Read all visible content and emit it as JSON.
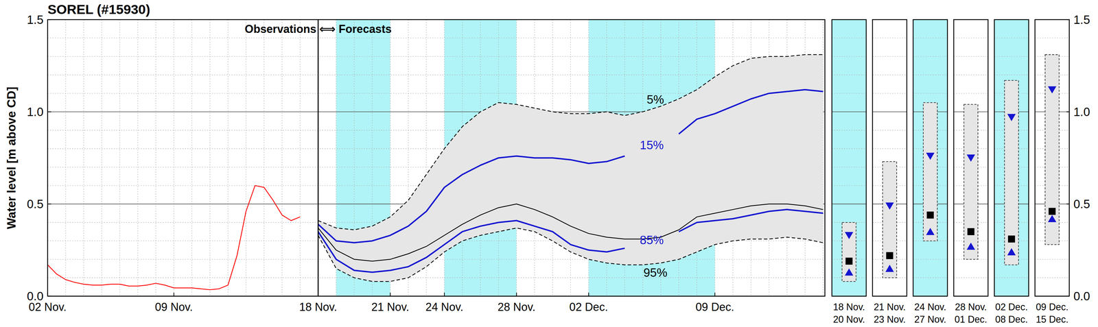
{
  "chart_data": {
    "type": "line",
    "title": "SOREL (#15930)",
    "y_label": "Water level [m above CD]",
    "annotation": "Observations ⟺ Forecasts",
    "forecast_start": 15,
    "xlim": [
      0,
      43.1
    ],
    "xticks": [
      {
        "value": 0,
        "label": "02 Nov."
      },
      {
        "value": 7,
        "label": "09 Nov."
      },
      {
        "value": 15,
        "label": "18 Nov."
      },
      {
        "value": 19,
        "label": "21 Nov."
      },
      {
        "value": 22,
        "label": "24 Nov."
      },
      {
        "value": 26,
        "label": "28 Nov."
      },
      {
        "value": 30,
        "label": "02 Dec."
      },
      {
        "value": 37,
        "label": "09 Dec."
      }
    ],
    "ylim": [
      0,
      1.5
    ],
    "yticks": [
      {
        "value": 0,
        "label": "0.0"
      },
      {
        "value": 0.5,
        "label": "0.5"
      },
      {
        "value": 1,
        "label": "1.0"
      },
      {
        "value": 1.5,
        "label": "1.5"
      }
    ],
    "grid": true,
    "series": [
      {
        "color": "#ff0000",
        "line_style": "solid",
        "x": [
          0,
          0.5,
          1,
          1.5,
          2,
          2.5,
          3,
          3.5,
          4,
          4.5,
          5,
          5.5,
          6,
          6.5,
          7,
          7.5,
          8,
          8.5,
          9,
          9.5,
          10,
          10.5,
          11,
          11.5,
          12,
          12.5,
          13,
          13.5,
          14
        ],
        "values": [
          0.17,
          0.12,
          0.09,
          0.075,
          0.065,
          0.06,
          0.06,
          0.065,
          0.065,
          0.055,
          0.055,
          0.06,
          0.07,
          0.06,
          0.045,
          0.045,
          0.045,
          0.04,
          0.035,
          0.04,
          0.06,
          0.22,
          0.46,
          0.6,
          0.59,
          0.52,
          0.44,
          0.41,
          0.43
        ]
      },
      {
        "name": "5%",
        "color": "#000000",
        "line_style": "dashed",
        "x": [
          15,
          16,
          17,
          18,
          19,
          20,
          21,
          22,
          23,
          24,
          25,
          26,
          27,
          28,
          29,
          30,
          31,
          32,
          33,
          34,
          35,
          36,
          37,
          38,
          39,
          40,
          41,
          42,
          43
        ],
        "values": [
          0.41,
          0.37,
          0.36,
          0.38,
          0.43,
          0.52,
          0.66,
          0.8,
          0.92,
          1.0,
          1.05,
          1.04,
          1.02,
          1.0,
          0.99,
          0.99,
          1.0,
          0.98,
          1.0,
          1.03,
          1.07,
          1.12,
          1.19,
          1.25,
          1.29,
          1.3,
          1.3,
          1.31,
          1.31
        ]
      },
      {
        "name": "15%",
        "color": "#1515d0",
        "line_style": "solid",
        "x": [
          15,
          16,
          17,
          18,
          19,
          20,
          21,
          22,
          23,
          24,
          25,
          26,
          27,
          28,
          29,
          30,
          31,
          32,
          33,
          34,
          35,
          36,
          37,
          38,
          39,
          40,
          41,
          42,
          43
        ],
        "values": [
          0.39,
          0.3,
          0.29,
          0.3,
          0.33,
          0.38,
          0.46,
          0.59,
          0.66,
          0.71,
          0.75,
          0.76,
          0.75,
          0.75,
          0.74,
          0.72,
          0.73,
          0.76,
          null,
          null,
          0.88,
          0.96,
          0.99,
          1.03,
          1.07,
          1.1,
          1.11,
          1.12,
          1.11
        ]
      },
      {
        "color": "#000000",
        "line_style": "solid",
        "x": [
          15,
          16,
          17,
          18,
          19,
          20,
          21,
          22,
          23,
          24,
          25,
          26,
          27,
          28,
          29,
          30,
          31,
          32,
          33,
          34,
          35,
          36,
          37,
          38,
          39,
          40,
          41,
          42,
          43
        ],
        "values": [
          0.37,
          0.25,
          0.2,
          0.19,
          0.2,
          0.23,
          0.27,
          0.33,
          0.39,
          0.44,
          0.48,
          0.5,
          0.47,
          0.43,
          0.38,
          0.34,
          0.32,
          0.31,
          0.31,
          0.32,
          0.36,
          0.43,
          0.45,
          0.47,
          0.49,
          0.5,
          0.5,
          0.49,
          0.47
        ]
      },
      {
        "name": "85%",
        "color": "#1515d0",
        "line_style": "solid",
        "x": [
          15,
          16,
          17,
          18,
          19,
          20,
          21,
          22,
          23,
          24,
          25,
          26,
          27,
          28,
          29,
          30,
          31,
          32,
          33,
          34,
          35,
          36,
          37,
          38,
          39,
          40,
          41,
          42,
          43
        ],
        "values": [
          0.35,
          0.2,
          0.14,
          0.13,
          0.14,
          0.16,
          0.21,
          0.28,
          0.35,
          0.38,
          0.4,
          0.41,
          0.38,
          0.35,
          0.28,
          0.25,
          0.24,
          0.26,
          null,
          null,
          0.35,
          0.4,
          0.41,
          0.42,
          0.44,
          0.46,
          0.47,
          0.46,
          0.45
        ]
      },
      {
        "name": "95%",
        "color": "#000000",
        "line_style": "dashed",
        "x": [
          15,
          16,
          17,
          18,
          19,
          20,
          21,
          22,
          23,
          24,
          25,
          26,
          27,
          28,
          29,
          30,
          31,
          32,
          33,
          34,
          35,
          36,
          37,
          38,
          39,
          40,
          41,
          42,
          43
        ],
        "values": [
          0.33,
          0.15,
          0.1,
          0.08,
          0.08,
          0.1,
          0.16,
          0.24,
          0.3,
          0.33,
          0.35,
          0.37,
          0.35,
          0.3,
          0.24,
          0.2,
          0.18,
          0.17,
          0.17,
          0.18,
          0.2,
          0.24,
          0.28,
          0.3,
          0.31,
          0.31,
          0.32,
          0.31,
          0.29
        ]
      }
    ],
    "periods": [
      {
        "start": 16,
        "end": 19,
        "label": [
          "18 Nov.",
          "20 Nov."
        ],
        "color": "#b0f4f7",
        "p5": 0.4,
        "p15": 0.33,
        "p50": 0.19,
        "p85": 0.13,
        "p95": 0.08
      },
      {
        "start": 19,
        "end": 22,
        "label": [
          "21 Nov.",
          "23 Nov."
        ],
        "color": "#ffffff",
        "p5": 0.73,
        "p15": 0.49,
        "p50": 0.22,
        "p85": 0.15,
        "p95": 0.1
      },
      {
        "start": 22,
        "end": 26,
        "label": [
          "24 Nov.",
          "27 Nov."
        ],
        "color": "#b0f4f7",
        "p5": 1.05,
        "p15": 0.76,
        "p50": 0.44,
        "p85": 0.35,
        "p95": 0.3
      },
      {
        "start": 26,
        "end": 30,
        "label": [
          "28 Nov.",
          "01 Dec."
        ],
        "color": "#ffffff",
        "p5": 1.04,
        "p15": 0.75,
        "p50": 0.35,
        "p85": 0.27,
        "p95": 0.2
      },
      {
        "start": 30,
        "end": 37,
        "label": [
          "02 Dec.",
          "08 Dec."
        ],
        "color": "#b0f4f7",
        "p5": 1.17,
        "p15": 0.97,
        "p50": 0.31,
        "p85": 0.24,
        "p95": 0.17
      },
      {
        "start": 37,
        "end": 44,
        "label": [
          "09 Dec.",
          "15 Dec."
        ],
        "color": "#ffffff",
        "p5": 1.31,
        "p15": 1.12,
        "p50": 0.46,
        "p85": 0.42,
        "p95": 0.28
      }
    ]
  }
}
